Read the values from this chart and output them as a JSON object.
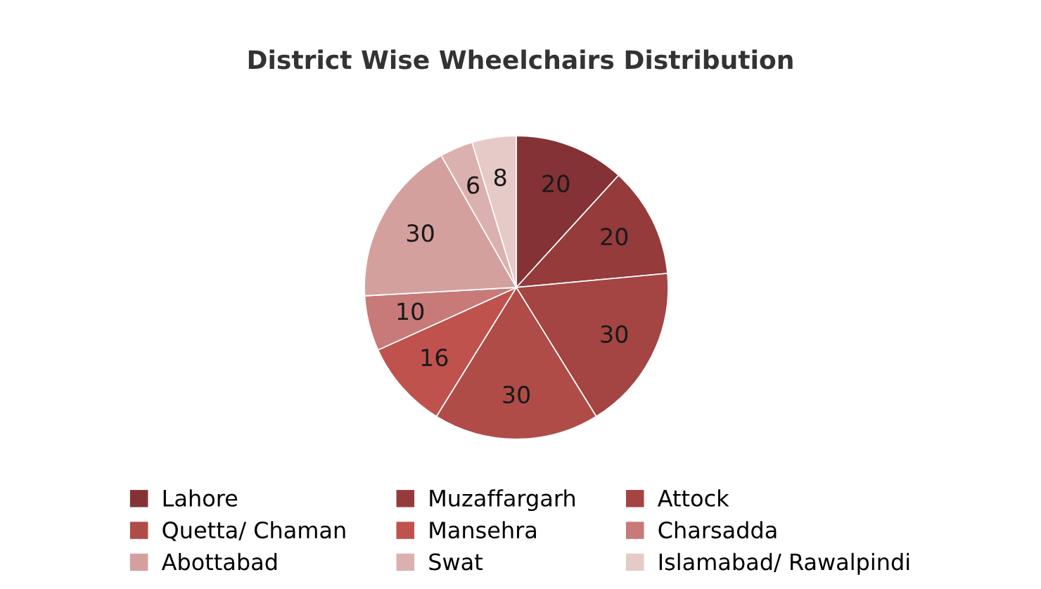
{
  "chart_data": {
    "type": "pie",
    "title": "District Wise Wheelchairs Distribution",
    "categories": [
      "Lahore",
      "Muzaffargarh",
      "Attock",
      "Quetta/ Chaman",
      "Mansehra",
      "Charsadda",
      "Abottabad",
      "Swat",
      "Islamabad/ Rawalpindi"
    ],
    "values": [
      20,
      20,
      30,
      30,
      16,
      10,
      30,
      6,
      8
    ],
    "colors": [
      "#843235",
      "#953b3c",
      "#a44443",
      "#b04c48",
      "#c0524e",
      "#c77a78",
      "#d4a09e",
      "#dbb1af",
      "#e6cac8"
    ],
    "data_labels": true,
    "legend": "bottom"
  }
}
